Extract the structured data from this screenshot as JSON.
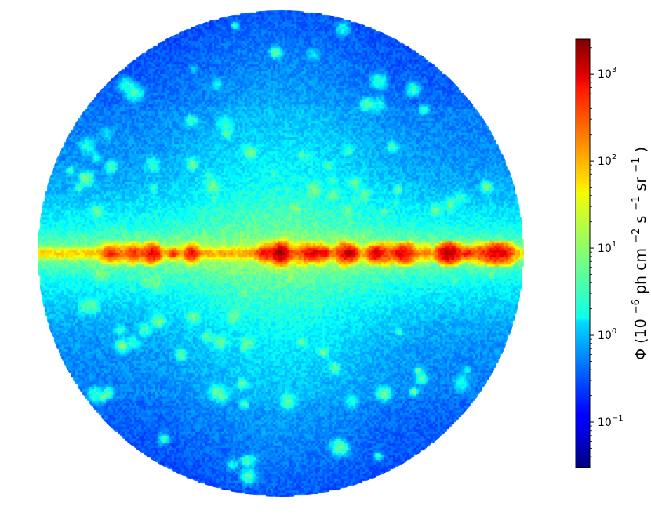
{
  "chart_data": {
    "type": "heatmap",
    "projection": "orthographic",
    "colormap": "jet",
    "scale": "log",
    "vmin": 0.03,
    "vmax": 2500,
    "colorbar": {
      "label": {
        "symbol": "Φ",
        "p1": "(10",
        "s1": "−6",
        "p2": "ph cm",
        "s2": "−2",
        "p3": "s",
        "s3": "−1",
        "p4": "sr",
        "s4": "−1",
        "p5": ")"
      },
      "ticks": [
        {
          "value": 0.1,
          "base": "10",
          "exp": "−1"
        },
        {
          "value": 1,
          "base": "10",
          "exp": "0"
        },
        {
          "value": 10,
          "base": "10",
          "exp": "1"
        },
        {
          "value": 100,
          "base": "10",
          "exp": "2"
        },
        {
          "value": 1000,
          "base": "10",
          "exp": "3"
        }
      ]
    },
    "features": {
      "background_level": 1.0,
      "pole_level": 0.4,
      "plane_peak_level": 300,
      "galactic_center_level": 1500
    }
  }
}
